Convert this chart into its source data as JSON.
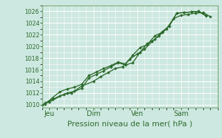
{
  "bg_color": "#cde8e0",
  "plot_bg_color": "#cde8e0",
  "grid_color": "#ffffff",
  "line_color": "#2d6a2d",
  "marker_color": "#2d6a2d",
  "xlabel": "Pression niveau de la mer( hPa )",
  "ylim": [
    1009.5,
    1027
  ],
  "yticks": [
    1010,
    1012,
    1014,
    1016,
    1018,
    1020,
    1022,
    1024,
    1026
  ],
  "x_tick_labels": [
    "Jeu",
    "Dim",
    "Ven",
    "Sam"
  ],
  "x_tick_positions": [
    0.5,
    3.5,
    6.5,
    9.5
  ],
  "x_min": 0,
  "x_max": 12,
  "series1_x": [
    0.2,
    0.7,
    1.2,
    1.7,
    2.2,
    2.7,
    3.2,
    3.7,
    4.2,
    4.7,
    5.2,
    5.7,
    6.2,
    6.7,
    7.2,
    7.7,
    8.2,
    8.7,
    9.2,
    9.7,
    10.2,
    10.7,
    11.2
  ],
  "series1_y": [
    1010.3,
    1010.9,
    1011.5,
    1012.0,
    1012.3,
    1012.8,
    1014.6,
    1015.2,
    1015.8,
    1016.5,
    1017.2,
    1016.8,
    1017.2,
    1019.0,
    1020.5,
    1021.2,
    1022.5,
    1023.5,
    1025.7,
    1025.8,
    1025.9,
    1026.0,
    1025.2
  ],
  "series2_x": [
    0.2,
    0.7,
    1.2,
    1.7,
    2.2,
    2.7,
    3.2,
    3.7,
    4.2,
    4.7,
    5.2,
    5.7,
    6.2,
    6.7,
    7.2,
    7.7,
    8.2,
    8.7,
    9.2,
    9.7,
    10.2,
    10.7,
    11.2
  ],
  "series2_y": [
    1010.1,
    1011.2,
    1012.2,
    1012.7,
    1013.0,
    1013.5,
    1015.0,
    1015.6,
    1016.2,
    1016.7,
    1017.3,
    1017.0,
    1018.5,
    1019.8,
    1020.3,
    1021.8,
    1022.4,
    1023.5,
    1025.7,
    1025.8,
    1025.9,
    1026.0,
    1025.3
  ],
  "series3_x": [
    0.0,
    0.5,
    1.5,
    2.0,
    2.7,
    3.5,
    4.0,
    4.5,
    5.0,
    5.5,
    6.0,
    6.5,
    7.0,
    7.5,
    8.0,
    8.5,
    9.0,
    9.5,
    10.0,
    10.5,
    11.0,
    11.5
  ],
  "series3_y": [
    1010.0,
    1010.5,
    1011.8,
    1012.0,
    1013.2,
    1014.0,
    1014.8,
    1015.5,
    1016.2,
    1016.5,
    1017.8,
    1018.7,
    1019.5,
    1020.8,
    1021.8,
    1023.0,
    1024.8,
    1025.3,
    1025.5,
    1025.7,
    1025.8,
    1025.1
  ],
  "vline_positions": [
    0.5,
    3.5,
    6.5,
    9.5
  ],
  "vline_color": "#5a8a5a",
  "spine_color": "#7aaa7a",
  "xlabel_fontsize": 8,
  "ytick_fontsize": 6,
  "xtick_fontsize": 7
}
